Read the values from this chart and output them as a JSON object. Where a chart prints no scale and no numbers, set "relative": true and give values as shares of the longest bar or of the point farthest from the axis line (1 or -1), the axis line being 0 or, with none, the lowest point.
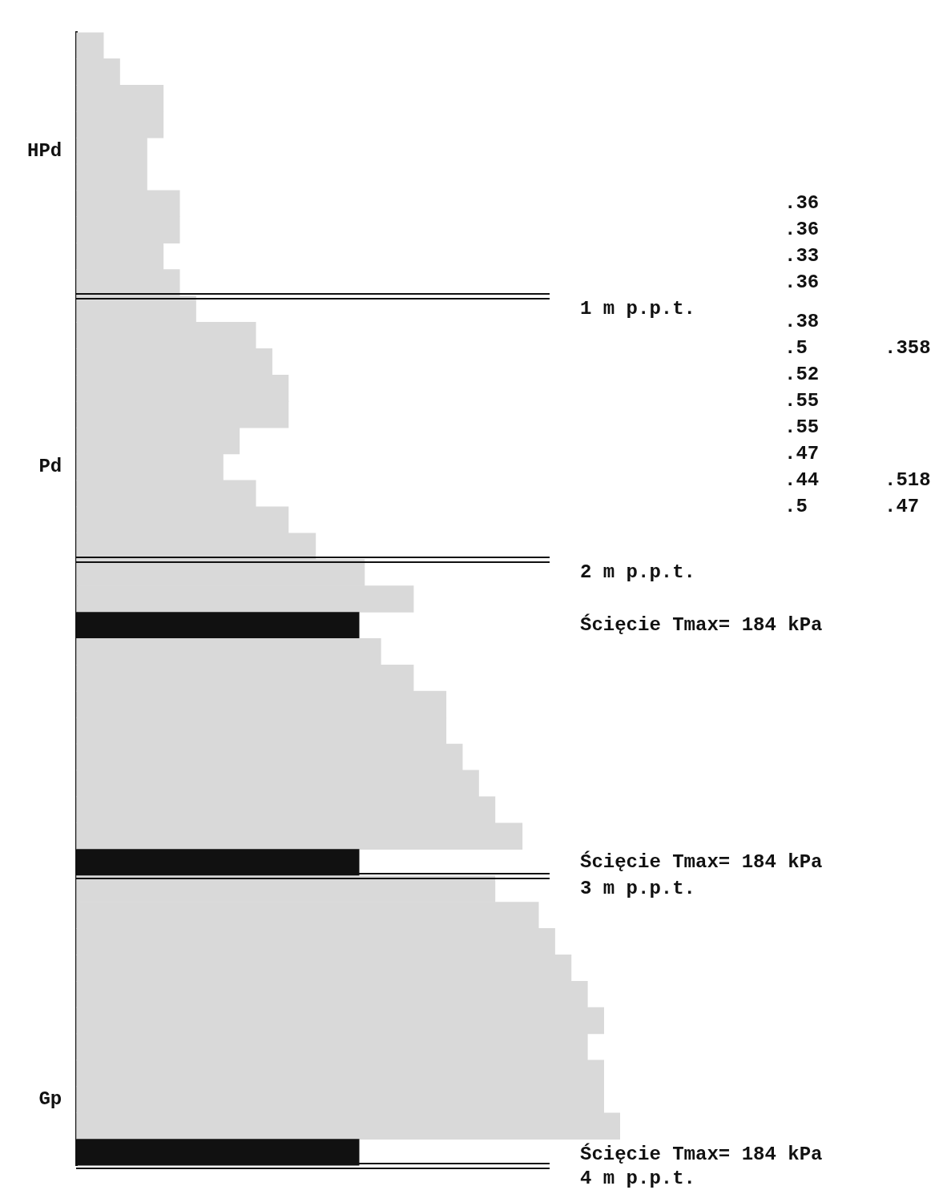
{
  "chart_data": {
    "type": "bar",
    "orientation": "horizontal",
    "relative": true,
    "grid": false,
    "legend": false,
    "categories": [
      null,
      null,
      null,
      null,
      "HPd",
      null,
      null,
      null,
      null,
      null,
      null,
      null,
      null,
      null,
      null,
      null,
      "Pd",
      null,
      null,
      null,
      null,
      null,
      null,
      null,
      null,
      null,
      null,
      null,
      null,
      null,
      null,
      null,
      null,
      null,
      null,
      null,
      null,
      null,
      null,
      null,
      "Gp",
      null,
      null
    ],
    "values": [
      0.05,
      0.08,
      0.16,
      0.16,
      0.13,
      0.13,
      0.19,
      0.19,
      0.16,
      0.19,
      0.22,
      0.33,
      0.36,
      0.39,
      0.39,
      0.3,
      0.27,
      0.33,
      0.39,
      0.44,
      0.53,
      0.62,
      0.52,
      0.56,
      0.62,
      0.68,
      0.68,
      0.71,
      0.74,
      0.77,
      0.82,
      0.52,
      0.77,
      0.85,
      0.88,
      0.91,
      0.94,
      0.97,
      0.94,
      0.97,
      0.97,
      1,
      0.52
    ],
    "colors": [
      "#d9d9d9",
      "#d9d9d9",
      "#d9d9d9",
      "#d9d9d9",
      "#d9d9d9",
      "#d9d9d9",
      "#d9d9d9",
      "#d9d9d9",
      "#d9d9d9",
      "#d9d9d9",
      "#d9d9d9",
      "#d9d9d9",
      "#d9d9d9",
      "#d9d9d9",
      "#d9d9d9",
      "#d9d9d9",
      "#d9d9d9",
      "#d9d9d9",
      "#d9d9d9",
      "#d9d9d9",
      "#d9d9d9",
      "#d9d9d9",
      "#111111",
      "#d9d9d9",
      "#d9d9d9",
      "#d9d9d9",
      "#d9d9d9",
      "#d9d9d9",
      "#d9d9d9",
      "#d9d9d9",
      "#d9d9d9",
      "#111111",
      "#d9d9d9",
      "#d9d9d9",
      "#d9d9d9",
      "#d9d9d9",
      "#d9d9d9",
      "#d9d9d9",
      "#d9d9d9",
      "#d9d9d9",
      "#d9d9d9",
      "#d9d9d9",
      "#111111"
    ],
    "annotations": [
      ".36",
      ".36",
      ".33",
      ".36",
      "1 m p.p.t.",
      ".38",
      ".5",
      ".358",
      ".52",
      ".55",
      ".55",
      ".47",
      ".44",
      ".518",
      ".5",
      ".47",
      "2 m p.p.t.",
      "Ścięcie Tmax= 184 kPa",
      "Ścięcie Tmax= 184 kPa",
      "3 m p.p.t.",
      "Ścięcie Tmax= 184 kPa",
      "4 m p.p.t."
    ]
  }
}
